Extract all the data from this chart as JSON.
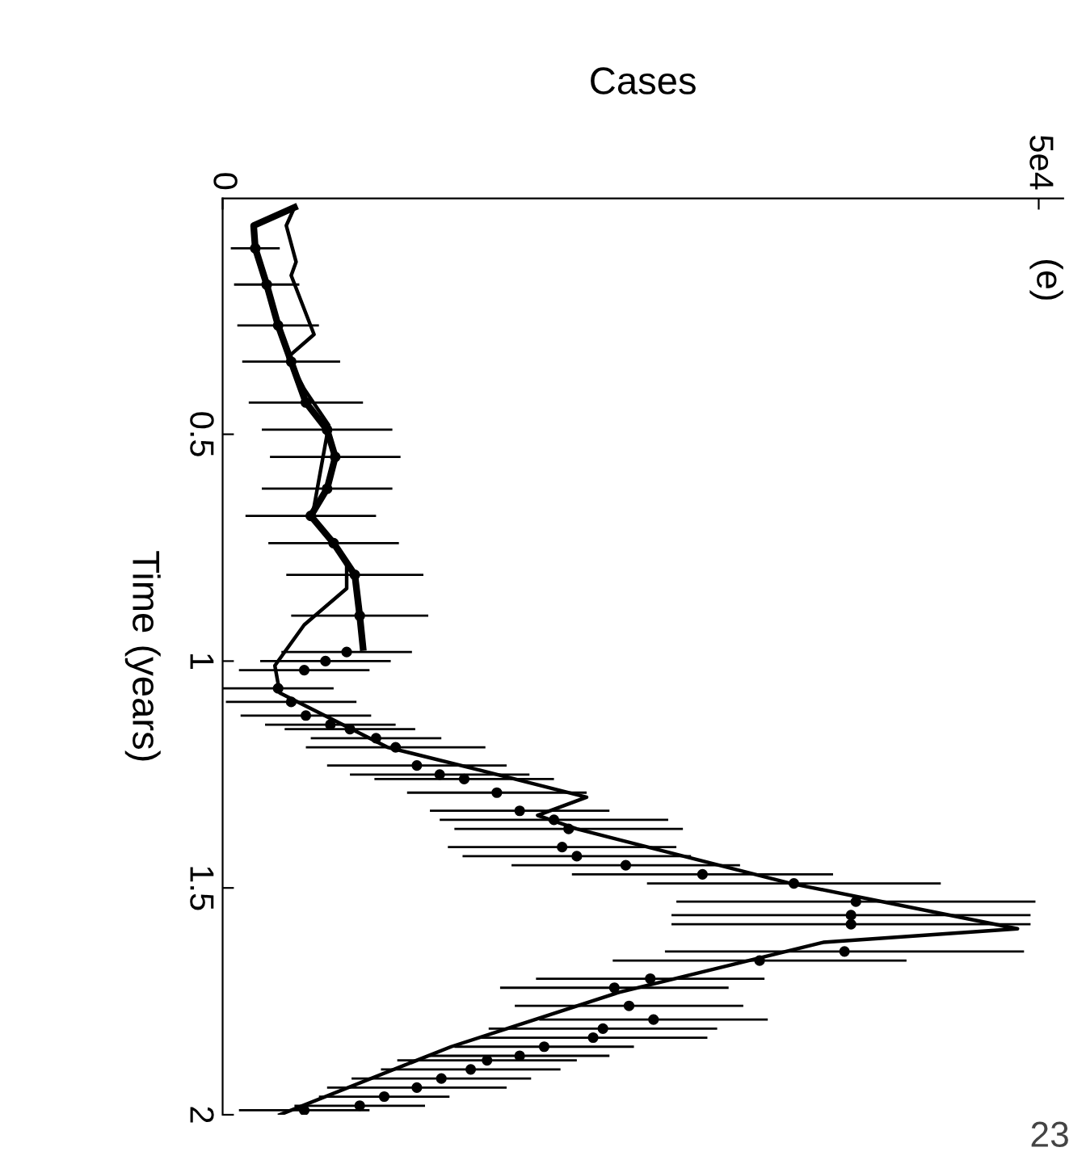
{
  "chart_data": {
    "type": "line",
    "xlabel": "Cases",
    "ylabel": "Time (years)",
    "xlim": [
      0,
      51500
    ],
    "xticks": [
      0,
      {
        "value": 50000,
        "label": "5e4"
      }
    ],
    "ylim": [
      2,
      -0.02
    ],
    "yticks": [
      0.5,
      1,
      1.5,
      2
    ],
    "grid": false,
    "legend": false,
    "annotations": [
      "(e)",
      "23"
    ],
    "series": [
      {
        "color": "#000000",
        "x": [
          4400,
          3900,
          4500,
          4200,
          5600,
          4000,
          5000,
          6500,
          5800,
          5500,
          7600,
          7600,
          5000,
          3200,
          3500,
          10100,
          15700,
          22300,
          19300,
          21700,
          34800,
          48700,
          36800,
          24300,
          14000,
          3500
        ],
        "values": [
          0.0,
          0.04,
          0.12,
          0.15,
          0.28,
          0.33,
          0.4,
          0.48,
          0.62,
          0.68,
          0.78,
          0.84,
          0.92,
          1.01,
          1.07,
          1.19,
          1.24,
          1.3,
          1.34,
          1.37,
          1.49,
          1.59,
          1.62,
          1.73,
          1.85,
          2.0
        ]
      },
      {
        "color": "#000000",
        "x": [
          4400,
          1900,
          2000,
          2700,
          3400,
          4200,
          5100,
          6400,
          6900,
          6400,
          5400,
          6800,
          8100,
          8400,
          8600
        ],
        "values": [
          0.0,
          0.04,
          0.09,
          0.17,
          0.26,
          0.34,
          0.43,
          0.49,
          0.55,
          0.62,
          0.68,
          0.74,
          0.81,
          0.9,
          0.97
        ]
      },
      {
        "type": "scatter",
        "marker": "circle",
        "color": "#000000",
        "x": [
          2000,
          2700,
          3400,
          4200,
          5100,
          6400,
          6900,
          6400,
          5400,
          6800,
          8100,
          8400,
          7600,
          6300,
          5000,
          3400,
          4200,
          5100,
          6600,
          7800,
          9400,
          10600,
          11900,
          13300,
          14800,
          16800,
          18200,
          20300,
          21200,
          20800,
          21700,
          24700,
          29400,
          35000,
          38800,
          38500,
          38500,
          38100,
          32900,
          26200,
          24000,
          24900,
          26400,
          23300,
          22700,
          19700,
          18200,
          16200,
          15200,
          13400,
          11900,
          9900,
          8400,
          5000
        ],
        "values": [
          0.09,
          0.17,
          0.26,
          0.34,
          0.43,
          0.49,
          0.55,
          0.62,
          0.68,
          0.74,
          0.81,
          0.9,
          0.98,
          1.0,
          1.02,
          1.06,
          1.09,
          1.12,
          1.14,
          1.15,
          1.17,
          1.19,
          1.23,
          1.25,
          1.26,
          1.29,
          1.33,
          1.35,
          1.37,
          1.41,
          1.43,
          1.45,
          1.47,
          1.49,
          1.53,
          1.56,
          1.58,
          1.64,
          1.66,
          1.7,
          1.72,
          1.76,
          1.79,
          1.81,
          1.83,
          1.85,
          1.87,
          1.88,
          1.9,
          1.92,
          1.94,
          1.96,
          1.98,
          1.99
        ],
        "xerrors": [
          1500,
          2000,
          2500,
          3000,
          3500,
          4000,
          4000,
          4000,
          4000,
          4000,
          4200,
          4200,
          4000,
          4000,
          4000,
          3400,
          4000,
          4000,
          4000,
          4000,
          4000,
          5500,
          5500,
          5500,
          5500,
          5500,
          5500,
          7000,
          7000,
          7000,
          7000,
          7000,
          8000,
          9000,
          11000,
          11000,
          11000,
          11000,
          9000,
          7000,
          7000,
          7000,
          7000,
          7000,
          7000,
          5500,
          5500,
          5500,
          5500,
          5500,
          5500,
          4000,
          4000,
          4000
        ]
      }
    ]
  }
}
